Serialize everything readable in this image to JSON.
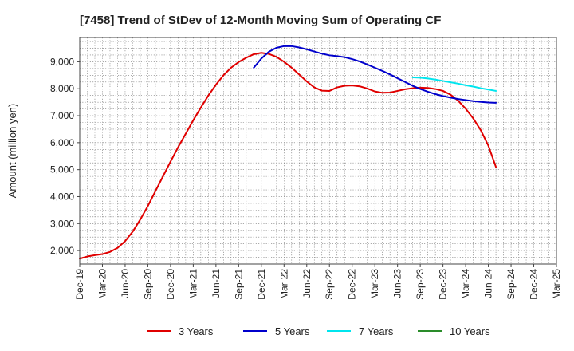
{
  "chart_data": {
    "type": "line",
    "title": "[7458]  Trend of StDev of 12-Month Moving Sum of Operating CF",
    "xlabel": "",
    "ylabel": "Amount (million yen)",
    "ylim": [
      1500,
      9900
    ],
    "yticks": [
      2000,
      3000,
      4000,
      5000,
      6000,
      7000,
      8000,
      9000
    ],
    "ytick_labels": [
      "2,000",
      "3,000",
      "4,000",
      "5,000",
      "6,000",
      "7,000",
      "8,000",
      "9,000"
    ],
    "xticks": [
      "Dec-19",
      "Mar-20",
      "Jun-20",
      "Sep-20",
      "Dec-20",
      "Mar-21",
      "Jun-21",
      "Sep-21",
      "Dec-21",
      "Mar-22",
      "Jun-22",
      "Sep-22",
      "Dec-22",
      "Mar-23",
      "Jun-23",
      "Sep-23",
      "Dec-23",
      "Mar-24",
      "Jun-24",
      "Sep-24",
      "Dec-24",
      "Mar-25"
    ],
    "grid": true,
    "legend_position": "bottom",
    "series": [
      {
        "name": "3 Years",
        "color": "#e00000",
        "values": [
          1700,
          1780,
          1830,
          1870,
          1950,
          2100,
          2350,
          2700,
          3150,
          3650,
          4200,
          4750,
          5300,
          5830,
          6330,
          6830,
          7300,
          7750,
          8150,
          8500,
          8780,
          8990,
          9150,
          9280,
          9330,
          9290,
          9180,
          9000,
          8780,
          8530,
          8270,
          8050,
          7930,
          7920,
          8050,
          8110,
          8120,
          8090,
          8010,
          7900,
          7850,
          7860,
          7920,
          7980,
          8020,
          8040,
          8030,
          7990,
          7920,
          7780,
          7560,
          7260,
          6900,
          6460,
          5890,
          5100
        ]
      },
      {
        "name": "5 Years",
        "color": "#0000cc",
        "values": [
          null,
          null,
          null,
          null,
          null,
          null,
          null,
          null,
          null,
          null,
          null,
          null,
          null,
          null,
          null,
          null,
          null,
          null,
          null,
          null,
          null,
          null,
          null,
          8780,
          9120,
          9370,
          9520,
          9580,
          9580,
          9530,
          9460,
          9380,
          9300,
          9240,
          9210,
          9170,
          9100,
          9010,
          8900,
          8780,
          8660,
          8530,
          8390,
          8250,
          8110,
          7990,
          7890,
          7800,
          7730,
          7670,
          7620,
          7580,
          7540,
          7510,
          7490,
          7480
        ]
      },
      {
        "name": "7 Years",
        "color": "#00e5ee",
        "values": [
          null,
          null,
          null,
          null,
          null,
          null,
          null,
          null,
          null,
          null,
          null,
          null,
          null,
          null,
          null,
          null,
          null,
          null,
          null,
          null,
          null,
          null,
          null,
          null,
          null,
          null,
          null,
          null,
          null,
          null,
          null,
          null,
          null,
          null,
          null,
          null,
          null,
          null,
          null,
          null,
          null,
          null,
          null,
          null,
          8420,
          8410,
          8380,
          8340,
          8290,
          8240,
          8190,
          8130,
          8080,
          8020,
          7970,
          7920
        ]
      },
      {
        "name": "10 Years",
        "color": "#2a8c2a",
        "values": []
      }
    ]
  }
}
